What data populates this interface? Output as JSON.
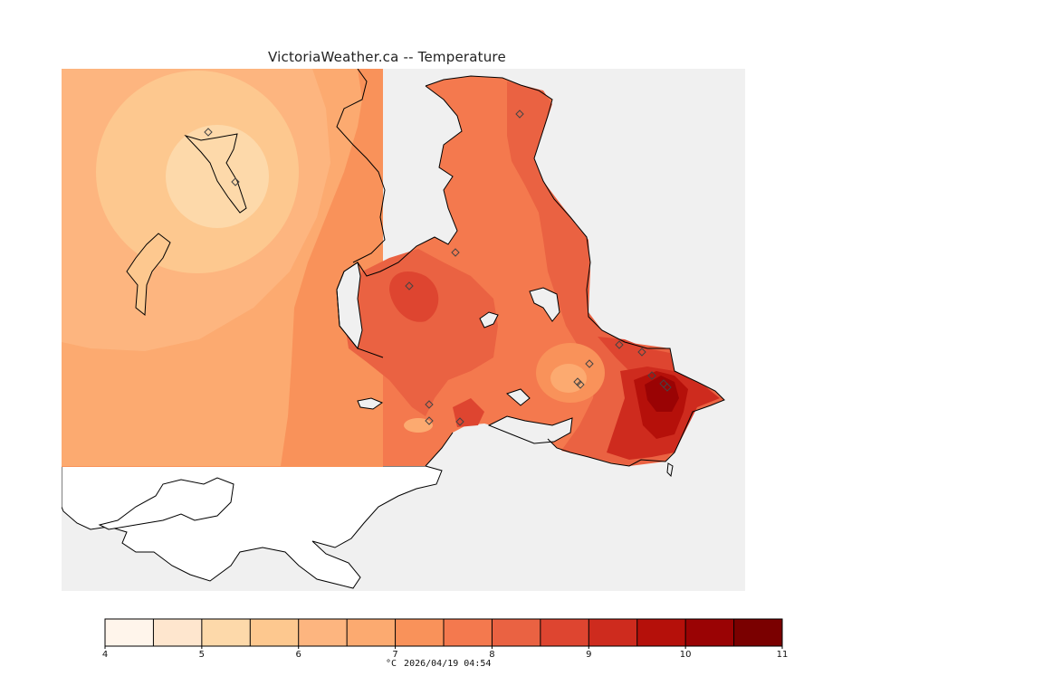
{
  "title": "VictoriaWeather.ca -- Temperature",
  "colorbar": {
    "ticks": [
      "4",
      "5",
      "6",
      "7",
      "8",
      "9",
      "10",
      "11"
    ],
    "colors": [
      "#fff5eb",
      "#fee6ce",
      "#fdd9aa",
      "#fdc88f",
      "#fdb57f",
      "#fcaa70",
      "#f9925a",
      "#f4794e",
      "#ea6242",
      "#de4530",
      "#ce2b1e",
      "#b5100a",
      "#9a0304",
      "#7a0000"
    ]
  },
  "caption": {
    "unit": "°C",
    "datetime": "2026/04/19 04:54"
  },
  "colors": {
    "land_outside": "#ffffff",
    "water_bg": "#f0f0f0",
    "station_marker": "#444444"
  }
}
